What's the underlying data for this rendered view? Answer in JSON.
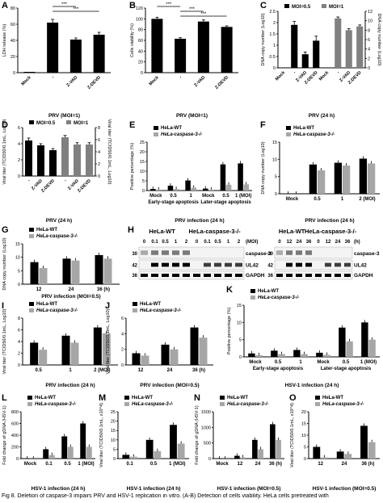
{
  "chart_data": [
    {
      "id": "A",
      "panel_letter": "A",
      "type": "bar",
      "ylabel": "LDH release (%)",
      "ylim": [
        0,
        80
      ],
      "yticks": [
        0,
        20,
        40,
        60,
        80
      ],
      "categories": [
        "Mock",
        "-",
        "Z-VAD",
        "Z-DEVD"
      ],
      "values": [
        1,
        62,
        41,
        47
      ],
      "errors": [
        0,
        4,
        2,
        3
      ],
      "colors": [
        "#000000"
      ],
      "xgroup_label": "PRV (MOI=1)",
      "sig": [
        {
          "a": 1,
          "b": 2,
          "label": "***"
        },
        {
          "a": 1,
          "b": 3,
          "label": "***"
        }
      ]
    },
    {
      "id": "B",
      "panel_letter": "B",
      "type": "bar",
      "ylabel": "Cells viability (%)",
      "ylim": [
        0,
        120
      ],
      "yticks": [
        0,
        20,
        40,
        60,
        80,
        100,
        120
      ],
      "categories": [
        "Mock",
        "-",
        "Z-VAD",
        "Z-DEVD"
      ],
      "values": [
        100,
        63,
        95,
        85
      ],
      "errors": [
        3,
        2,
        3,
        2
      ],
      "colors": [
        "#000000"
      ],
      "xgroup_label": "PRV (MOI=1)",
      "sig": [
        {
          "a": 0,
          "b": 1,
          "label": "***"
        },
        {
          "a": 1,
          "b": 2,
          "label": "***"
        },
        {
          "a": 1,
          "b": 3,
          "label": "***"
        }
      ]
    },
    {
      "id": "C",
      "panel_letter": "C",
      "type": "bar",
      "ylabel": "DNA copy number (Log10)",
      "y2label": "DNA copy number (Log10)",
      "legend": [
        "MOI=0.5",
        "MOI=1"
      ],
      "colors": [
        "#000000",
        "#808080"
      ],
      "categories": [
        "Mock",
        "-",
        "Z-VAD",
        "Z-DEVD",
        "Mock",
        "-",
        "Z-VAD",
        "Z-DEVD"
      ],
      "ylim": [
        0,
        2.5
      ],
      "yticks": [
        0,
        0.5,
        1,
        1.5,
        2,
        2.5
      ],
      "y2lim": [
        0,
        12
      ],
      "y2ticks": [
        0,
        2,
        4,
        6,
        8,
        10,
        12
      ],
      "values": [
        0,
        1.9,
        0.6,
        1.2,
        0,
        10.5,
        8.0,
        8.8
      ],
      "errors": [
        0,
        0.15,
        0.1,
        0.2,
        0,
        0.3,
        0.3,
        0.3
      ],
      "xgroup_label": "PRV (24 h)"
    },
    {
      "id": "D",
      "panel_letter": "D",
      "type": "bar",
      "ylabel": "Viral titer (TCID50/0.1mL, Log10)",
      "y2label": "Viral titer (TCID50/0.1mL, Log10)",
      "legend": [
        "MOI=0.5",
        "MOI=1"
      ],
      "colors": [
        "#000000",
        "#808080"
      ],
      "categories": [
        "-",
        "Z-VAD",
        "Z-DEVD",
        "-",
        "Z-VAD",
        "Z-DEVD"
      ],
      "ylim": [
        0,
        6
      ],
      "yticks": [
        0,
        2,
        4,
        6
      ],
      "y2lim": [
        0,
        8
      ],
      "y2ticks": [
        0,
        2,
        4,
        6,
        8
      ],
      "values": [
        4.4,
        3.8,
        3.2,
        6.4,
        5.2,
        5.2
      ],
      "errors": [
        0.3,
        0.2,
        0.2,
        0.3,
        0.3,
        0.3
      ],
      "xgroup_label": "PRV (24 h)"
    },
    {
      "id": "E",
      "panel_letter": "E",
      "type": "bar",
      "ylabel": "Positive percentage (%)",
      "legend": [
        "HeLa-WT",
        "HeLa-caspase-3-/-"
      ],
      "colors": [
        "#000000",
        "#a6a6a6"
      ],
      "ylim": [
        0,
        25
      ],
      "yticks": [
        0,
        5,
        10,
        15,
        20,
        25
      ],
      "categories": [
        "Mock",
        "0.5",
        "1",
        "Mock",
        "0.5",
        "1 (MOI)"
      ],
      "series": [
        {
          "name": "HeLa-WT",
          "values": [
            0.8,
            2.5,
            5.2,
            1.0,
            13.5,
            14.0
          ]
        },
        {
          "name": "HeLa-caspase-3-/-",
          "values": [
            0.5,
            0.8,
            1.5,
            0.5,
            3.0,
            3.2
          ]
        }
      ],
      "group_labels": [
        "Early-stage apoptosis",
        "Later-stage apoptosis"
      ],
      "xlabel": "PRV infection (24 h)"
    },
    {
      "id": "F",
      "panel_letter": "F",
      "type": "bar",
      "ylabel": "DNA copy number (Log10)",
      "legend": [
        "HeLa-WT",
        "HeLa-caspase-3-/-"
      ],
      "colors": [
        "#000000",
        "#a6a6a6"
      ],
      "ylim": [
        0,
        15
      ],
      "yticks": [
        0,
        5,
        10,
        15
      ],
      "categories": [
        "Mock",
        "0.5",
        "1",
        "2 (MOI)"
      ],
      "series": [
        {
          "name": "HeLa-WT",
          "values": [
            0,
            8.5,
            9.0,
            10.2
          ]
        },
        {
          "name": "HeLa-caspase-3-/-",
          "values": [
            0,
            6.8,
            8.2,
            8.8
          ]
        }
      ],
      "xlabel": "PRV infection (24 h)"
    },
    {
      "id": "G",
      "panel_letter": "G",
      "type": "bar",
      "ylabel": "DNA copy number (Log10)",
      "legend": [
        "HeLa-WT",
        "HeLa-caspase-3-/-"
      ],
      "colors": [
        "#000000",
        "#a6a6a6"
      ],
      "ylim": [
        0,
        15
      ],
      "yticks": [
        0,
        5,
        10,
        15
      ],
      "categories": [
        "12",
        "24",
        "36 (h)"
      ],
      "series": [
        {
          "name": "HeLa-WT",
          "values": [
            8.2,
            9.5,
            10.8
          ]
        },
        {
          "name": "HeLa-caspase-3-/-",
          "values": [
            6.0,
            8.8,
            9.5
          ]
        }
      ],
      "xlabel": "PRV infection (MOI=0.5)"
    },
    {
      "id": "I",
      "panel_letter": "I",
      "type": "bar",
      "ylabel": "Viral titer (TCID50/0.1mL, Log10)",
      "legend": [
        "HeLa-WT",
        "HeLa-caspase-3-/-"
      ],
      "colors": [
        "#000000",
        "#a6a6a6"
      ],
      "ylim": [
        0,
        8
      ],
      "yticks": [
        0,
        2,
        4,
        6,
        8
      ],
      "categories": [
        "0.5",
        "1",
        "2 (MOI)"
      ],
      "series": [
        {
          "name": "HeLa-WT",
          "values": [
            3.8,
            5.0,
            6.4
          ]
        },
        {
          "name": "HeLa-caspase-3-/-",
          "values": [
            2.6,
            3.8,
            5.4
          ]
        }
      ],
      "xlabel": "PRV infection (24 h)"
    },
    {
      "id": "J",
      "panel_letter": "J",
      "type": "bar",
      "ylabel": "Viral titer (TCID50/0.1mL, Log10)",
      "legend": [
        "HeLa-WT",
        "HeLa-caspase-3-/-"
      ],
      "colors": [
        "#000000",
        "#a6a6a6"
      ],
      "ylim": [
        0,
        6
      ],
      "yticks": [
        0,
        2,
        4,
        6
      ],
      "categories": [
        "12",
        "24",
        "36 (h)"
      ],
      "series": [
        {
          "name": "HeLa-WT",
          "values": [
            1.5,
            2.6,
            4.8
          ]
        },
        {
          "name": "HeLa-caspase-3-/-",
          "values": [
            1.2,
            2.0,
            3.5
          ]
        }
      ],
      "xlabel": "PRV infection (MOI=0.5)"
    },
    {
      "id": "K",
      "panel_letter": "K",
      "type": "bar",
      "ylabel": "Positive percentage (%)",
      "legend": [
        "HeLa-WT",
        "HeLa-caspase-3-/-"
      ],
      "colors": [
        "#000000",
        "#a6a6a6"
      ],
      "ylim": [
        0,
        15
      ],
      "yticks": [
        0,
        5,
        10,
        15
      ],
      "categories": [
        "Mock",
        "0.5",
        "1",
        "Mock",
        "0.5",
        "1 (MOI)"
      ],
      "series": [
        {
          "name": "HeLa-WT",
          "values": [
            1.0,
            1.8,
            2.0,
            1.2,
            8.5,
            10.0
          ]
        },
        {
          "name": "HeLa-caspase-3-/-",
          "values": [
            0.5,
            0.8,
            0.8,
            0.6,
            4.5,
            5.0
          ]
        }
      ],
      "group_labels": [
        "Early-stage apoptosis",
        "Later-stage apoptosis"
      ],
      "xlabel": "HSV-1 infection (24 h)"
    },
    {
      "id": "L",
      "panel_letter": "L",
      "type": "bar",
      "ylabel": "Fold change of gDNA (HSV-1)",
      "legend": [
        "HeLa-WT",
        "HeLa-caspase-3-/-"
      ],
      "colors": [
        "#000000",
        "#a6a6a6"
      ],
      "ylim": [
        0,
        800
      ],
      "yticks": [
        0,
        200,
        400,
        600,
        800
      ],
      "categories": [
        "Mock",
        "0.1",
        "0.5",
        "1 (MOI)"
      ],
      "series": [
        {
          "name": "HeLa-WT",
          "values": [
            1,
            160,
            380,
            600
          ]
        },
        {
          "name": "HeLa-caspase-3-/-",
          "values": [
            1,
            60,
            200,
            200
          ]
        }
      ],
      "xlabel": "HSV-1 infection (24 h)"
    },
    {
      "id": "M",
      "panel_letter": "M",
      "type": "bar",
      "ylabel": "Viral titer (TCID50/0.1mL, x10^4)",
      "legend": [
        "HeLa-WT",
        "HeLa-caspase-3-/-"
      ],
      "colors": [
        "#000000",
        "#a6a6a6"
      ],
      "ylim": [
        0,
        25
      ],
      "yticks": [
        0,
        5,
        10,
        15,
        20,
        25
      ],
      "categories": [
        "0.1",
        "0.5",
        "1 (MOI)"
      ],
      "series": [
        {
          "name": "HeLa-WT",
          "values": [
            2,
            10,
            18
          ]
        },
        {
          "name": "HeLa-caspase-3-/-",
          "values": [
            1,
            4,
            8
          ]
        }
      ],
      "xlabel": "HSV-1 infection (24 h)"
    },
    {
      "id": "N",
      "panel_letter": "N",
      "type": "bar",
      "ylabel": "Fold change of gDNA (HSV-1)",
      "legend": [
        "HeLa-WT",
        "HeLa-caspase-3-/-"
      ],
      "colors": [
        "#000000",
        "#a6a6a6"
      ],
      "ylim": [
        0,
        1500
      ],
      "yticks": [
        0,
        500,
        1000,
        1500
      ],
      "categories": [
        "Mock",
        "12",
        "24",
        "36 (h)"
      ],
      "series": [
        {
          "name": "HeLa-WT",
          "values": [
            1,
            90,
            600,
            1100
          ]
        },
        {
          "name": "HeLa-caspase-3-/-",
          "values": [
            1,
            40,
            300,
            600
          ]
        }
      ],
      "xlabel": "HSV-1 infection (MOI=0.5)"
    },
    {
      "id": "O",
      "panel_letter": "O",
      "type": "bar",
      "ylabel": "Viral titer (TCID50/0.1mL, x10^4)",
      "legend": [
        "HeLa-WT",
        "HeLa-caspase-3-/-"
      ],
      "colors": [
        "#000000",
        "#a6a6a6"
      ],
      "ylim": [
        0,
        20
      ],
      "yticks": [
        0,
        5,
        10,
        15,
        20
      ],
      "categories": [
        "12",
        "24",
        "36 (h)"
      ],
      "series": [
        {
          "name": "HeLa-WT",
          "values": [
            5,
            3,
            14
          ]
        },
        {
          "name": "HeLa-caspase-3-/-",
          "values": [
            0.5,
            2,
            7
          ]
        }
      ],
      "xlabel": "HSV-1 infection (MOI=0.5)"
    }
  ],
  "blot": {
    "panel_letter": "H",
    "left": {
      "header_wt": "HeLa-WT",
      "header_ko": "HeLa-caspase-3-/-",
      "lanes": [
        "0",
        "0.1",
        "0.5",
        "1",
        "2",
        "0",
        "0.1",
        "0.5",
        "1",
        "2"
      ],
      "unit": "(MOI)"
    },
    "right": {
      "header_wt": "HeLa-WT",
      "header_ko": "HeLa-caspase-3-/-",
      "lanes": [
        "0",
        "12",
        "24",
        "36",
        "0",
        "12",
        "24",
        "36"
      ],
      "unit": "(h)"
    },
    "markers": [
      "30",
      "42",
      "36"
    ],
    "labels": [
      "caspase-3",
      "UL42",
      "GAPDH"
    ]
  },
  "caption": "Fig 8. Deletion of caspase-3 impairs PRV and HSV-1 replication in vitro. (A-B) Detection of cells viability. HeLa cells pretreated with"
}
